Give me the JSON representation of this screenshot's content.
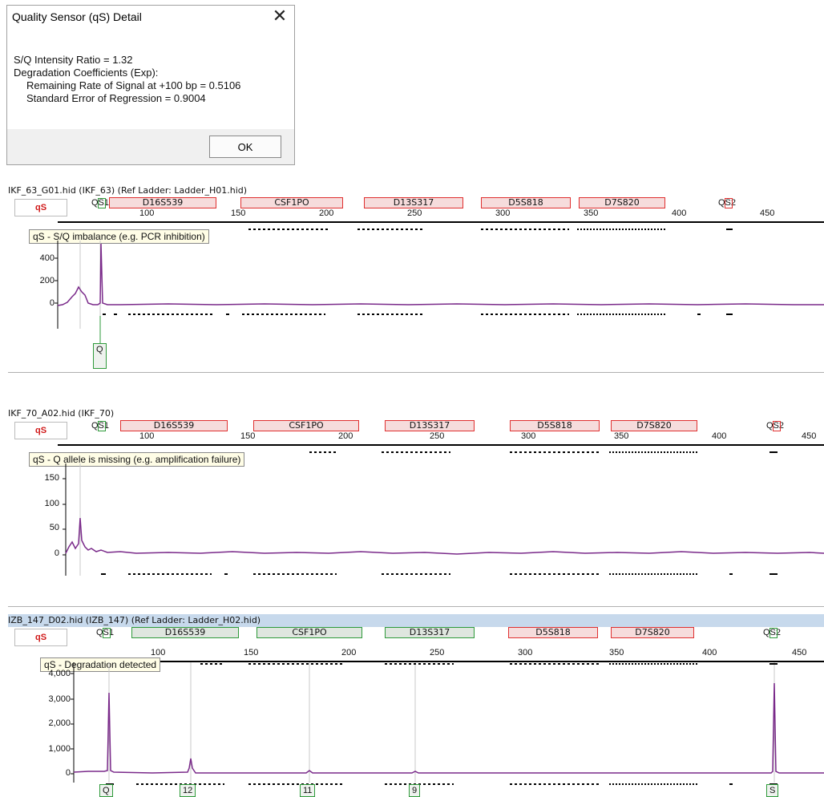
{
  "dialog": {
    "title": "Quality Sensor (qS) Detail",
    "close_icon": "close-icon",
    "ratio": "S/Q Intensity Ratio = 1.32",
    "coef_heading": "Degradation Coefficients (Exp):",
    "remaining": "Remaining Rate of Signal at +100 bp = 0.5106",
    "std_error": "Standard Error of Regression = 0.9004",
    "ok_label": "OK"
  },
  "panels": [
    {
      "header": "IKF_63_G01.hid   (IKF_63)   (Ref Ladder: Ladder_H01.hid)",
      "qs_button": "qS",
      "qs1": "QS1",
      "qs2": "QS2",
      "markers": [
        "D16S539",
        "CSF1PO",
        "D13S317",
        "D5S818",
        "D7S820"
      ],
      "ticks": [
        "100",
        "150",
        "200",
        "250",
        "300",
        "350",
        "400",
        "450"
      ],
      "tooltip": "qS - S/Q imbalance (e.g. PCR inhibition)",
      "y_labels": [
        "400",
        "200",
        "0"
      ],
      "alleles": [
        "Q"
      ]
    },
    {
      "header": "IKF_70_A02.hid   (IKF_70)",
      "qs_button": "qS",
      "qs1": "QS1",
      "qs2": "QS2",
      "markers": [
        "D16S539",
        "CSF1PO",
        "D13S317",
        "D5S818",
        "D7S820"
      ],
      "ticks": [
        "100",
        "150",
        "200",
        "250",
        "300",
        "350",
        "400",
        "450"
      ],
      "tooltip": "qS - Q allele is missing (e.g. amplification failure)",
      "y_labels": [
        "150",
        "100",
        "50",
        "0"
      ],
      "alleles": []
    },
    {
      "header": "IZB_147_D02.hid   (IZB_147)   (Ref Ladder: Ladder_H02.hid)",
      "qs_button": "qS",
      "qs1": "QS1",
      "qs2": "QS2",
      "markers": [
        "D16S539",
        "CSF1PO",
        "D13S317",
        "D5S818",
        "D7S820"
      ],
      "ticks": [
        "100",
        "150",
        "200",
        "250",
        "300",
        "350",
        "400",
        "450"
      ],
      "tooltip": "qS - Degradation detected",
      "y_labels": [
        "4,000",
        "3,000",
        "2,000",
        "1,000",
        "0"
      ],
      "alleles": [
        "Q",
        "12",
        "11",
        "9",
        "S"
      ]
    }
  ],
  "colors": {
    "trace": "#7a2a8a",
    "marker_red": "#e03030",
    "marker_green": "#2e9a3a",
    "selected_header": "#c7d9ec"
  }
}
